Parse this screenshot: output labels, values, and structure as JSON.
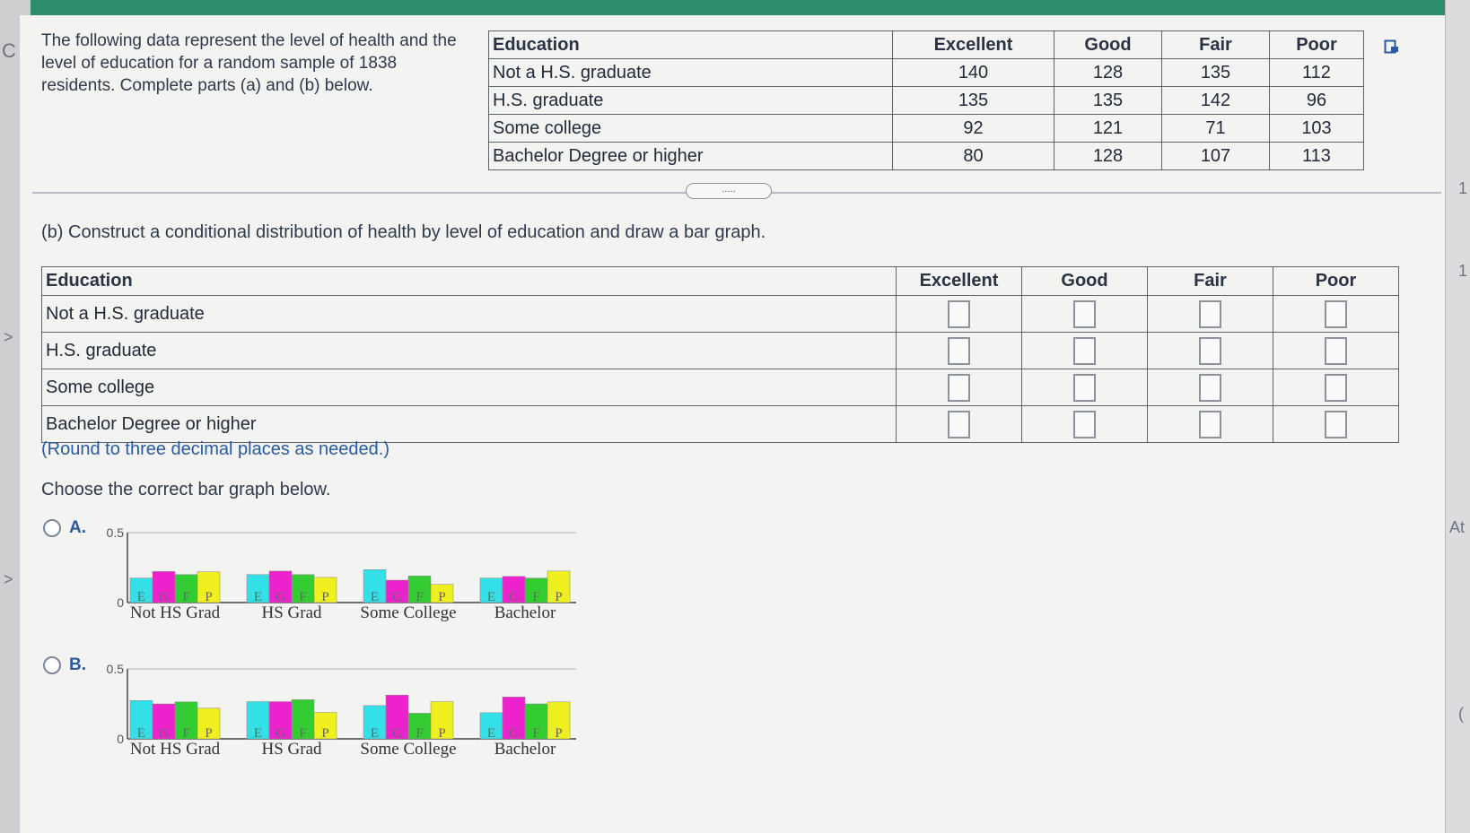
{
  "intro": "The following data represent the level of health and the level of education for a random sample of 1838 residents. Complete parts (a) and (b) below.",
  "table_a": {
    "headers": [
      "Education",
      "Excellent",
      "Good",
      "Fair",
      "Poor"
    ],
    "rows": [
      {
        "label": "Not a H.S. graduate",
        "values": [
          "140",
          "128",
          "135",
          "112"
        ]
      },
      {
        "label": "H.S. graduate",
        "values": [
          "135",
          "135",
          "142",
          "96"
        ]
      },
      {
        "label": "Some college",
        "values": [
          "92",
          "121",
          "71",
          "103"
        ]
      },
      {
        "label": "Bachelor Degree or higher",
        "values": [
          "80",
          "128",
          "107",
          "113"
        ]
      }
    ]
  },
  "collapse_button": ".....",
  "part_b_prompt": "(b) Construct a conditional distribution of health by level of education and draw a bar graph.",
  "table_b": {
    "headers": [
      "Education",
      "Excellent",
      "Good",
      "Fair",
      "Poor"
    ],
    "rows": [
      "Not a H.S. graduate",
      "H.S. graduate",
      "Some college",
      "Bachelor Degree or higher"
    ]
  },
  "round_note": "(Round to three decimal places as needed.)",
  "choose_prompt": "Choose the correct bar graph below.",
  "options": [
    {
      "label": "A."
    },
    {
      "label": "B."
    }
  ],
  "colors": {
    "E": "#33e0e8",
    "G": "#ee22cc",
    "F": "#33cc33",
    "P": "#f0f020"
  },
  "chart_data": [
    {
      "type": "bar",
      "option": "A.",
      "categories": [
        "Not HS Grad",
        "HS Grad",
        "Some College",
        "Bachelor"
      ],
      "bar_labels": [
        "E",
        "G",
        "F",
        "P"
      ],
      "series": [
        {
          "values": [
            0.175,
            0.2,
            0.235,
            0.175
          ]
        },
        {
          "values": [
            0.222,
            0.225,
            0.16,
            0.187
          ]
        },
        {
          "values": [
            0.2,
            0.2,
            0.19,
            0.175
          ]
        },
        {
          "values": [
            0.22,
            0.18,
            0.13,
            0.225
          ]
        }
      ],
      "yticks": [
        "0",
        "0.5"
      ],
      "ylim": [
        0,
        0.5
      ]
    },
    {
      "type": "bar",
      "option": "B.",
      "categories": [
        "Not HS Grad",
        "HS Grad",
        "Some College",
        "Bachelor"
      ],
      "bar_labels": [
        "E",
        "G",
        "F",
        "P"
      ],
      "series": [
        {
          "values": [
            0.274,
            0.266,
            0.238,
            0.187
          ]
        },
        {
          "values": [
            0.25,
            0.266,
            0.313,
            0.299
          ]
        },
        {
          "values": [
            0.264,
            0.28,
            0.183,
            0.25
          ]
        },
        {
          "values": [
            0.219,
            0.189,
            0.266,
            0.264
          ]
        }
      ],
      "yticks": [
        "0",
        "0.5"
      ],
      "ylim": [
        0,
        0.5
      ]
    }
  ],
  "edge_glyphs": {
    "left_top": "C",
    "left_mid1": ">",
    "left_mid2": ">",
    "right1": "1",
    "right2": "1",
    "right3": "At",
    "right4": "("
  }
}
